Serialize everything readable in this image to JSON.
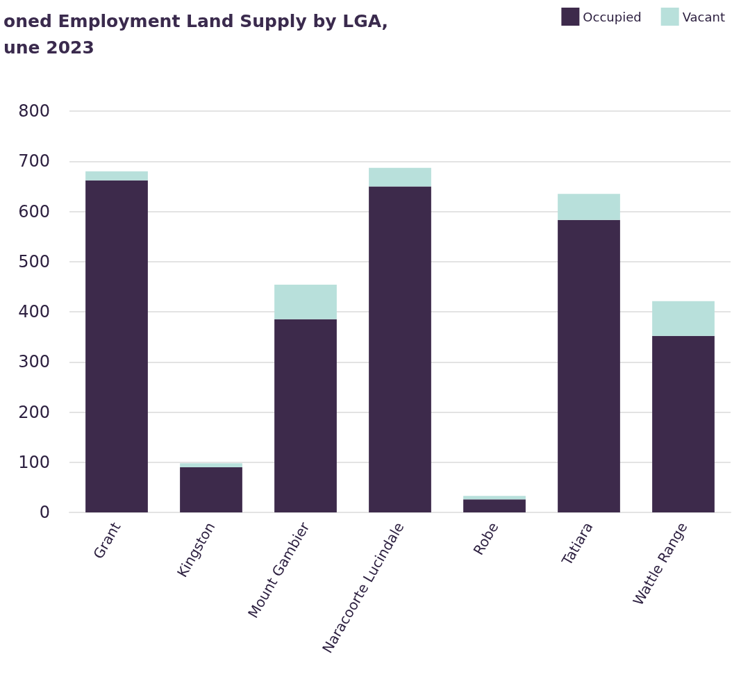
{
  "chart_data": {
    "type": "bar",
    "title": "oned Employment Land Supply by LGA,\nune 2023",
    "categories": [
      "Grant",
      "Kingston",
      "Mount Gambier",
      "Naracoorte Lucindale",
      "Robe",
      "Tatiara",
      "Wattle Range"
    ],
    "series": [
      {
        "name": "Occupied",
        "color": "#3d2a4b",
        "values": [
          662,
          90,
          385,
          650,
          26,
          583,
          352
        ]
      },
      {
        "name": "Vacant",
        "color": "#b8e0db",
        "values": [
          18,
          8,
          69,
          37,
          7,
          52,
          69
        ]
      }
    ],
    "stacked": true,
    "ylim": [
      0,
      800
    ],
    "yticks": [
      0,
      100,
      200,
      300,
      400,
      500,
      600,
      700,
      800
    ],
    "grid": "y",
    "legend": "top right"
  }
}
